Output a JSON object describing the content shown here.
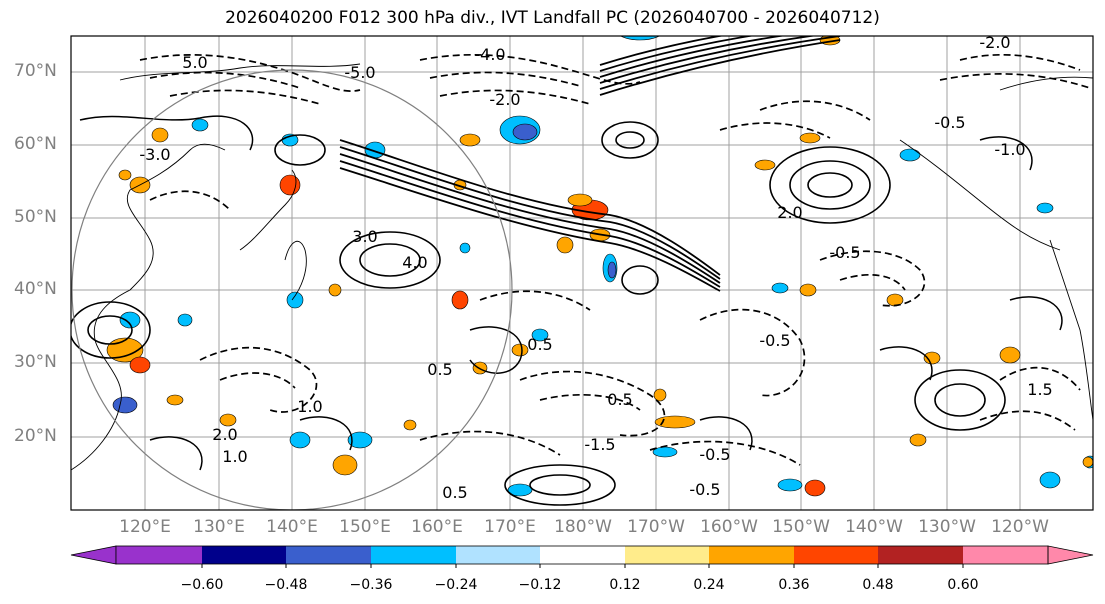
{
  "title": "2026040200 F012 300 hPa div., IVT Landfall PC (2026040700 - 2026040712)",
  "lat_labels": [
    "70°N",
    "60°N",
    "50°N",
    "40°N",
    "30°N",
    "20°N"
  ],
  "lon_labels": [
    "120°E",
    "130°E",
    "140°E",
    "150°E",
    "160°E",
    "170°E",
    "180°W",
    "170°W",
    "160°W",
    "150°W",
    "140°W",
    "130°W",
    "120°W"
  ],
  "contour_labels": [
    "5.0",
    "-5.0",
    "-4.0",
    "-3.0",
    "-2.0",
    "-2.0",
    "-1.0",
    "3.0",
    "4.0",
    "2.0",
    "-0.5",
    "-0.5",
    "-0.5",
    "0.5",
    "0.5",
    "1.0",
    "1.5",
    "-1.5",
    "2.0",
    "-0.5",
    "0.5",
    "1.0",
    "-0.5",
    "0.5"
  ],
  "colorbar": {
    "colors": [
      "#9932cc",
      "#00008b",
      "#3a5fcd",
      "#00bfff",
      "#b0e2ff",
      "#ffffff",
      "#ffec8b",
      "#ffa500",
      "#ff4500",
      "#b22222",
      "#ff88aa"
    ],
    "tick_labels": [
      "−0.60",
      "−0.48",
      "−0.36",
      "−0.24",
      "−0.12",
      "0.12",
      "0.24",
      "0.36",
      "0.48",
      "0.60"
    ]
  }
}
